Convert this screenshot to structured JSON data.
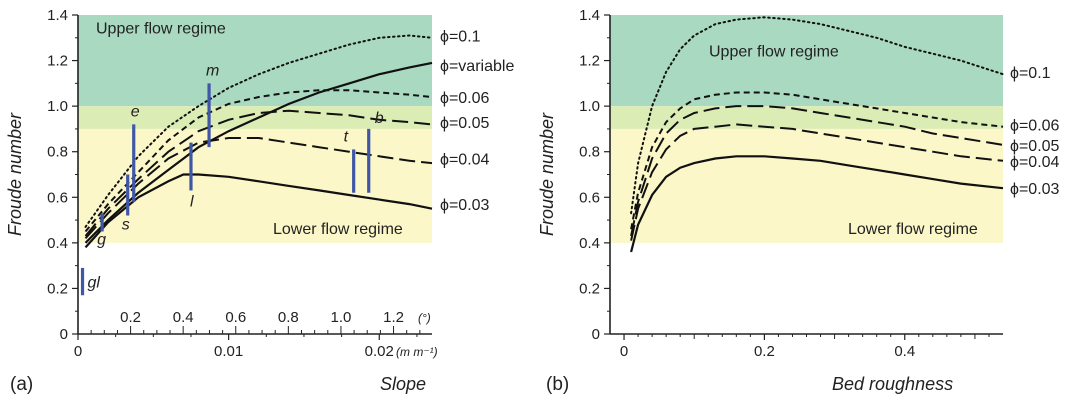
{
  "chart_data": [
    {
      "type": "line",
      "panel_label": "(a)",
      "xlabel": "Slope",
      "ylabel": "Froude number",
      "xlim": [
        0,
        0.0235
      ],
      "ylim": [
        0,
        1.4
      ],
      "x_ticks": [
        0,
        0.01,
        0.02
      ],
      "x_tick_labels": [
        "0",
        "0.01",
        "0.02"
      ],
      "x_unit": "(m m⁻¹)",
      "secondary_x_ticks_deg": [
        0.2,
        0.4,
        0.6,
        0.8,
        1.0,
        1.2
      ],
      "secondary_x_tick_labels": [
        "0.2",
        "0.4",
        "0.6",
        "0.8",
        "1.0",
        "1.2"
      ],
      "secondary_x_unit": "(°)",
      "y_ticks": [
        0,
        0.2,
        0.4,
        0.6,
        0.8,
        1.0,
        1.2,
        1.4
      ],
      "y_tick_labels": [
        "0",
        "0.2",
        "0.4",
        "0.6",
        "0.8",
        "1.0",
        "1.2",
        "1.4"
      ],
      "regions": [
        {
          "label": "Upper flow regime",
          "y_range": [
            1.0,
            1.4
          ],
          "color": "#a9d9c0"
        },
        {
          "label": "",
          "y_range": [
            0.9,
            1.0
          ],
          "color": "#dcecb5"
        },
        {
          "label": "Lower flow regime",
          "y_range": [
            0.4,
            0.9
          ],
          "color": "#fbf7c8"
        }
      ],
      "series": [
        {
          "name": "ϕ=0.1",
          "style": "dotted",
          "x": [
            0.0005,
            0.002,
            0.004,
            0.006,
            0.008,
            0.01,
            0.012,
            0.014,
            0.016,
            0.018,
            0.02,
            0.022,
            0.0235
          ],
          "y": [
            0.47,
            0.61,
            0.78,
            0.91,
            1.0,
            1.08,
            1.14,
            1.19,
            1.23,
            1.27,
            1.3,
            1.31,
            1.3
          ]
        },
        {
          "name": "ϕ=variable",
          "style": "solid",
          "x": [
            0.0005,
            0.002,
            0.004,
            0.006,
            0.008,
            0.01,
            0.012,
            0.014,
            0.016,
            0.018,
            0.02,
            0.022,
            0.0235
          ],
          "y": [
            0.4,
            0.5,
            0.62,
            0.72,
            0.82,
            0.89,
            0.95,
            1.01,
            1.06,
            1.1,
            1.14,
            1.17,
            1.19
          ]
        },
        {
          "name": "ϕ=0.06",
          "style": "short-dash",
          "x": [
            0.0005,
            0.002,
            0.004,
            0.006,
            0.008,
            0.01,
            0.012,
            0.014,
            0.016,
            0.018,
            0.02,
            0.022,
            0.0235
          ],
          "y": [
            0.45,
            0.57,
            0.71,
            0.85,
            0.95,
            1.01,
            1.04,
            1.06,
            1.07,
            1.07,
            1.06,
            1.05,
            1.04
          ]
        },
        {
          "name": "ϕ=0.05",
          "style": "long-dash",
          "x": [
            0.0005,
            0.002,
            0.004,
            0.006,
            0.008,
            0.01,
            0.012,
            0.014,
            0.016,
            0.018,
            0.02,
            0.022,
            0.0235
          ],
          "y": [
            0.43,
            0.55,
            0.68,
            0.8,
            0.89,
            0.94,
            0.97,
            0.98,
            0.97,
            0.96,
            0.94,
            0.93,
            0.92
          ]
        },
        {
          "name": "ϕ=0.04",
          "style": "long-dash",
          "x": [
            0.0005,
            0.002,
            0.004,
            0.006,
            0.008,
            0.01,
            0.012,
            0.014,
            0.016,
            0.018,
            0.02,
            0.022,
            0.0235
          ],
          "y": [
            0.42,
            0.53,
            0.66,
            0.77,
            0.84,
            0.86,
            0.86,
            0.84,
            0.82,
            0.8,
            0.78,
            0.76,
            0.75
          ]
        },
        {
          "name": "ϕ=0.03",
          "style": "solid",
          "x": [
            0.0005,
            0.002,
            0.004,
            0.006,
            0.007,
            0.008,
            0.01,
            0.012,
            0.014,
            0.016,
            0.018,
            0.02,
            0.022,
            0.0235
          ],
          "y": [
            0.38,
            0.49,
            0.6,
            0.67,
            0.7,
            0.7,
            0.69,
            0.67,
            0.65,
            0.63,
            0.61,
            0.59,
            0.57,
            0.55
          ]
        }
      ],
      "markers": [
        {
          "label": "gl",
          "x": 0.0003,
          "y_range": [
            0.17,
            0.29
          ]
        },
        {
          "label": "g",
          "x": 0.0016,
          "y_range": [
            0.45,
            0.53
          ]
        },
        {
          "label": "s",
          "x": 0.0033,
          "y_range": [
            0.52,
            0.7
          ]
        },
        {
          "label": "e",
          "x": 0.0037,
          "y_range": [
            0.58,
            0.92
          ]
        },
        {
          "label": "l",
          "x": 0.0075,
          "y_range": [
            0.63,
            0.84
          ]
        },
        {
          "label": "m",
          "x": 0.0087,
          "y_range": [
            0.82,
            1.1
          ]
        },
        {
          "label": "t",
          "x": 0.0183,
          "y_range": [
            0.62,
            0.81
          ]
        },
        {
          "label": "b",
          "x": 0.0193,
          "y_range": [
            0.62,
            0.9
          ]
        }
      ]
    },
    {
      "type": "line",
      "panel_label": "(b)",
      "xlabel": "Bed roughness",
      "ylabel": "Froude number",
      "xlim": [
        -0.02,
        0.54
      ],
      "ylim": [
        0,
        1.4
      ],
      "x_ticks": [
        0,
        0.2,
        0.4
      ],
      "x_tick_labels": [
        "0",
        "0.2",
        "0.4"
      ],
      "y_ticks": [
        0,
        0.2,
        0.4,
        0.6,
        0.8,
        1.0,
        1.2,
        1.4
      ],
      "y_tick_labels": [
        "0",
        "0.2",
        "0.4",
        "0.6",
        "0.8",
        "1.0",
        "1.2",
        "1.4"
      ],
      "regions": [
        {
          "label": "Upper flow regime",
          "y_range": [
            1.0,
            1.4
          ],
          "color": "#a9d9c0"
        },
        {
          "label": "",
          "y_range": [
            0.9,
            1.0
          ],
          "color": "#dcecb5"
        },
        {
          "label": "Lower flow regime",
          "y_range": [
            0.4,
            0.9
          ],
          "color": "#fbf7c8"
        }
      ],
      "series": [
        {
          "name": "ϕ=0.1",
          "style": "dotted",
          "x": [
            0.01,
            0.02,
            0.04,
            0.06,
            0.08,
            0.1,
            0.13,
            0.16,
            0.2,
            0.24,
            0.28,
            0.32,
            0.36,
            0.4,
            0.44,
            0.48,
            0.54
          ],
          "y": [
            0.53,
            0.75,
            1.0,
            1.15,
            1.25,
            1.31,
            1.36,
            1.38,
            1.39,
            1.38,
            1.36,
            1.33,
            1.3,
            1.26,
            1.23,
            1.2,
            1.14
          ]
        },
        {
          "name": "ϕ=0.06",
          "style": "short-dash",
          "x": [
            0.01,
            0.02,
            0.04,
            0.06,
            0.08,
            0.1,
            0.13,
            0.16,
            0.2,
            0.24,
            0.28,
            0.32,
            0.36,
            0.4,
            0.44,
            0.48,
            0.54
          ],
          "y": [
            0.46,
            0.62,
            0.82,
            0.93,
            0.99,
            1.03,
            1.05,
            1.06,
            1.06,
            1.05,
            1.03,
            1.01,
            0.99,
            0.97,
            0.95,
            0.93,
            0.91
          ]
        },
        {
          "name": "ϕ=0.05",
          "style": "long-dash",
          "x": [
            0.01,
            0.02,
            0.04,
            0.06,
            0.08,
            0.1,
            0.13,
            0.16,
            0.2,
            0.24,
            0.28,
            0.32,
            0.36,
            0.4,
            0.44,
            0.48,
            0.54
          ],
          "y": [
            0.43,
            0.58,
            0.77,
            0.88,
            0.94,
            0.97,
            0.99,
            1.0,
            1.0,
            0.99,
            0.97,
            0.95,
            0.93,
            0.91,
            0.88,
            0.86,
            0.83
          ]
        },
        {
          "name": "ϕ=0.04",
          "style": "long-dash",
          "x": [
            0.01,
            0.02,
            0.04,
            0.06,
            0.08,
            0.1,
            0.13,
            0.16,
            0.2,
            0.24,
            0.28,
            0.32,
            0.36,
            0.4,
            0.44,
            0.48,
            0.54
          ],
          "y": [
            0.41,
            0.55,
            0.71,
            0.81,
            0.87,
            0.9,
            0.91,
            0.92,
            0.91,
            0.9,
            0.88,
            0.86,
            0.84,
            0.82,
            0.8,
            0.78,
            0.76
          ]
        },
        {
          "name": "ϕ=0.03",
          "style": "solid",
          "x": [
            0.01,
            0.02,
            0.04,
            0.06,
            0.08,
            0.1,
            0.13,
            0.16,
            0.2,
            0.24,
            0.28,
            0.32,
            0.36,
            0.4,
            0.44,
            0.48,
            0.54
          ],
          "y": [
            0.36,
            0.48,
            0.61,
            0.69,
            0.73,
            0.75,
            0.77,
            0.78,
            0.78,
            0.77,
            0.76,
            0.74,
            0.72,
            0.7,
            0.68,
            0.66,
            0.64
          ]
        }
      ]
    }
  ]
}
